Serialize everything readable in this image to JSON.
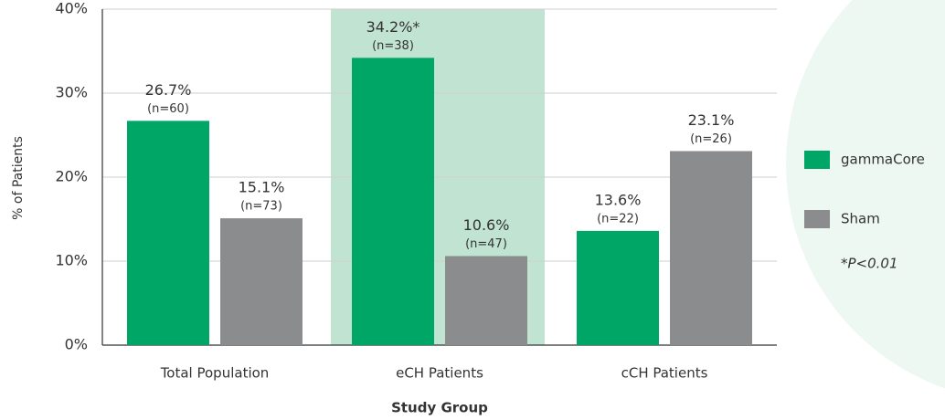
{
  "chart_data": {
    "type": "bar",
    "x_label": "Study Group",
    "y_label": "% of Patients",
    "categories": [
      "Total Population",
      "eCH Patients",
      "cCH Patients"
    ],
    "series": [
      {
        "name": "gammaCore",
        "color": "#00a665",
        "values": [
          26.7,
          34.2,
          13.6
        ],
        "value_labels": [
          "26.7%",
          "34.2%*",
          "13.6%"
        ],
        "n_labels": [
          "(n=60)",
          "(n=38)",
          "(n=22)"
        ]
      },
      {
        "name": "Sham",
        "color": "#8b8c8e",
        "values": [
          15.1,
          10.6,
          23.1
        ],
        "value_labels": [
          "15.1%",
          "10.6%",
          "23.1%"
        ],
        "n_labels": [
          "(n=73)",
          "(n=47)",
          "(n=26)"
        ]
      }
    ],
    "ylim": [
      0,
      40
    ],
    "yticks": [
      {
        "value": 0,
        "label": "0%"
      },
      {
        "value": 10,
        "label": "10%"
      },
      {
        "value": 20,
        "label": "20%"
      },
      {
        "value": 30,
        "label": "30%"
      },
      {
        "value": 40,
        "label": "40%"
      }
    ],
    "grid": true,
    "legend": "right",
    "note": "*P<0.01"
  }
}
